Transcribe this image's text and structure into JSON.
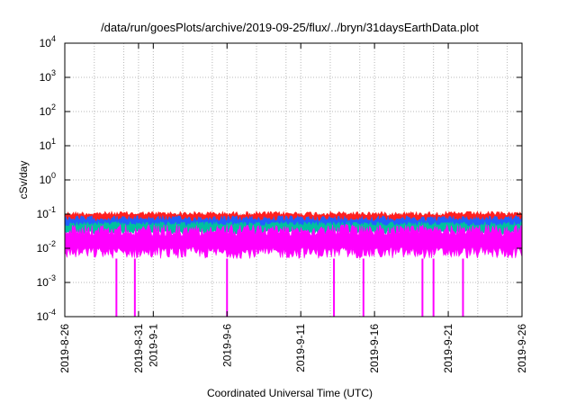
{
  "chart_data": {
    "type": "line",
    "title": "/data/run/goesPlots/archive/2019-09-25/flux/../bryn/31daysEarthData.plot",
    "xlabel": "Coordinated Universal Time (UTC)",
    "ylabel": "cSv/day",
    "yscale": "log",
    "ylim": [
      0.0001,
      10000
    ],
    "xlim": [
      "2019-08-26",
      "2019-09-26"
    ],
    "grid": true,
    "legend": "none",
    "x_ticks": [
      {
        "date": "2019-08-26",
        "label": "2019-8-26"
      },
      {
        "date": "2019-08-31",
        "label": "2019-8-31"
      },
      {
        "date": "2019-09-01",
        "label": "2019-9-1"
      },
      {
        "date": "2019-09-06",
        "label": "2019-9-6"
      },
      {
        "date": "2019-09-11",
        "label": "2019-9-11"
      },
      {
        "date": "2019-09-16",
        "label": "2019-9-16"
      },
      {
        "date": "2019-09-21",
        "label": "2019-9-21"
      },
      {
        "date": "2019-09-26",
        "label": "2019-9-26"
      }
    ],
    "minor_x_gridlines": [
      "2019-08-28",
      "2019-08-30",
      "2019-09-03",
      "2019-09-05",
      "2019-09-08",
      "2019-09-10",
      "2019-09-13",
      "2019-09-15",
      "2019-09-18",
      "2019-09-20",
      "2019-09-23",
      "2019-09-25"
    ],
    "y_ticks": [
      {
        "exp": 4,
        "value": 10000
      },
      {
        "exp": 3,
        "value": 1000
      },
      {
        "exp": 2,
        "value": 100
      },
      {
        "exp": 1,
        "value": 10
      },
      {
        "exp": 0,
        "value": 1
      },
      {
        "exp": -1,
        "value": 0.1
      },
      {
        "exp": -2,
        "value": 0.01
      },
      {
        "exp": -3,
        "value": 0.001
      },
      {
        "exp": -4,
        "value": 0.0001
      }
    ],
    "series": [
      {
        "color": "#ff2020",
        "low": 0.05,
        "high": 0.12
      },
      {
        "color": "#2060ff",
        "low": 0.03,
        "high": 0.09
      },
      {
        "color": "#00c0a0",
        "low": 0.025,
        "high": 0.06
      },
      {
        "color": "#ff00ff",
        "low": 0.005,
        "high": 0.05
      }
    ],
    "dropouts": [
      "2019-08-29T12:00",
      "2019-08-30T18:00",
      "2019-09-06T00:00",
      "2019-09-13T06:00",
      "2019-09-15T06:00",
      "2019-09-19T06:00",
      "2019-09-20T00:00",
      "2019-09-22T00:00"
    ]
  }
}
